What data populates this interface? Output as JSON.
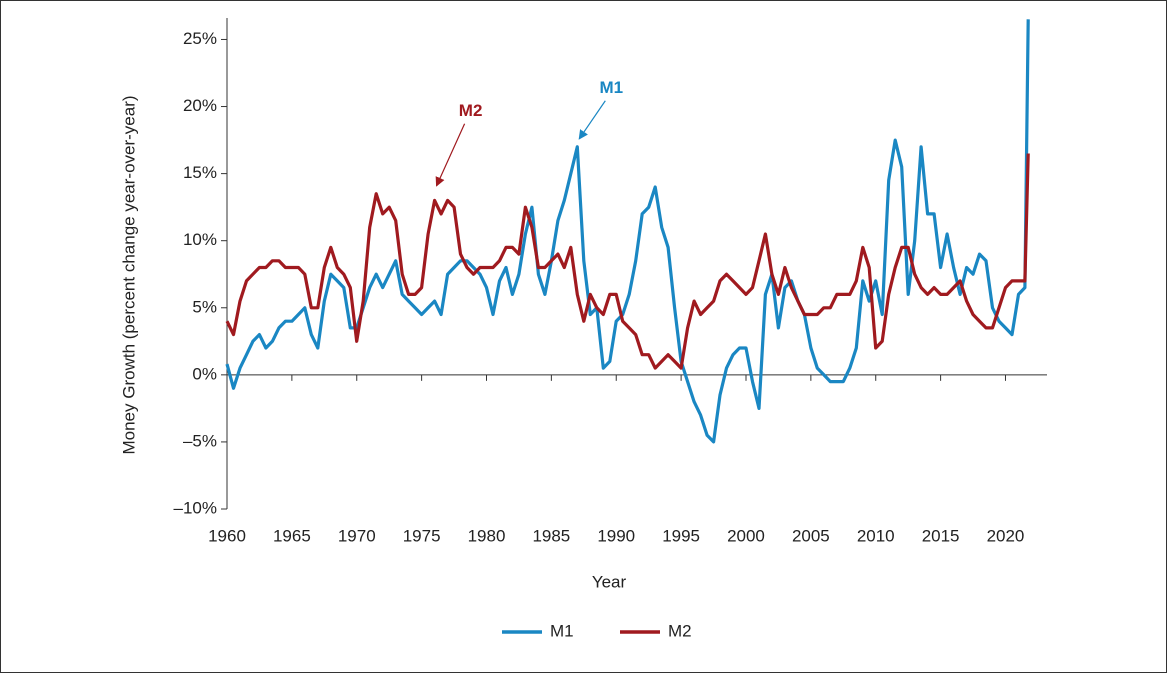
{
  "chart_data": {
    "type": "line",
    "x_label": "Year",
    "y_label": "Money Growth (percent change year-over-year)",
    "xlim": [
      1960,
      2023.2
    ],
    "ylim": [
      -10,
      26.6
    ],
    "xticks": [
      1960,
      1965,
      1970,
      1975,
      1980,
      1985,
      1990,
      1995,
      2000,
      2005,
      2010,
      2015,
      2020
    ],
    "yticks": [
      {
        "value": 25,
        "label": "25%"
      },
      {
        "value": 20,
        "label": "20%"
      },
      {
        "value": 15,
        "label": "15%"
      },
      {
        "value": 10,
        "label": "10%"
      },
      {
        "value": 5,
        "label": "5%"
      },
      {
        "value": 0,
        "label": "0%"
      },
      {
        "value": -5,
        "label": "–5%"
      },
      {
        "value": -10,
        "label": "–10%"
      }
    ],
    "legend": "bottom",
    "x": [
      1960,
      1960.5,
      1961,
      1961.5,
      1962,
      1962.5,
      1963,
      1963.5,
      1964,
      1964.5,
      1965,
      1965.5,
      1966,
      1966.5,
      1967,
      1967.5,
      1968,
      1968.5,
      1969,
      1969.5,
      1970,
      1970.5,
      1971,
      1971.5,
      1972,
      1972.5,
      1973,
      1973.5,
      1974,
      1974.5,
      1975,
      1975.5,
      1976,
      1976.5,
      1977,
      1977.5,
      1978,
      1978.5,
      1979,
      1979.5,
      1980,
      1980.5,
      1981,
      1981.5,
      1982,
      1982.5,
      1983,
      1983.5,
      1984,
      1984.5,
      1985,
      1985.5,
      1986,
      1986.5,
      1987,
      1987.5,
      1988,
      1988.5,
      1989,
      1989.5,
      1990,
      1990.5,
      1991,
      1991.5,
      1992,
      1992.5,
      1993,
      1993.5,
      1994,
      1994.5,
      1995,
      1995.5,
      1996,
      1996.5,
      1997,
      1997.5,
      1998,
      1998.5,
      1999,
      1999.5,
      2000,
      2000.5,
      2001,
      2001.5,
      2002,
      2002.5,
      2003,
      2003.5,
      2004,
      2004.5,
      2005,
      2005.5,
      2006,
      2006.5,
      2007,
      2007.5,
      2008,
      2008.5,
      2009,
      2009.5,
      2010,
      2010.5,
      2011,
      2011.5,
      2012,
      2012.5,
      2013,
      2013.5,
      2014,
      2014.5,
      2015,
      2015.5,
      2016,
      2016.5,
      2017,
      2017.5,
      2018,
      2018.5,
      2019,
      2019.5,
      2020,
      2020.5,
      2021,
      2021.5,
      2021.75
    ],
    "series": [
      {
        "name": "M1",
        "color": "#1a87c3",
        "values": [
          0.8,
          -1.0,
          0.5,
          1.5,
          2.5,
          3.0,
          2.0,
          2.5,
          3.5,
          4.0,
          4.0,
          4.5,
          5.0,
          3.0,
          2.0,
          5.5,
          7.5,
          7.0,
          6.5,
          3.5,
          3.5,
          5.0,
          6.5,
          7.5,
          6.5,
          7.5,
          8.5,
          6.0,
          5.5,
          5.0,
          4.5,
          5.0,
          5.5,
          4.5,
          7.5,
          8.0,
          8.5,
          8.5,
          8.0,
          7.5,
          6.5,
          4.5,
          7.0,
          8.0,
          6.0,
          7.5,
          10.5,
          12.5,
          7.5,
          6.0,
          8.5,
          11.5,
          13.0,
          15.0,
          17.0,
          8.5,
          4.5,
          5.0,
          0.5,
          1.0,
          4.0,
          4.5,
          6.0,
          8.5,
          12.0,
          12.5,
          14.0,
          11.0,
          9.5,
          5.0,
          1.0,
          -0.5,
          -2.0,
          -3.0,
          -4.5,
          -5.0,
          -1.5,
          0.5,
          1.5,
          2.0,
          2.0,
          -0.5,
          -2.5,
          6.0,
          7.5,
          3.5,
          6.5,
          7.0,
          5.5,
          4.5,
          2.0,
          0.5,
          0.0,
          -0.5,
          -0.5,
          -0.5,
          0.5,
          2.0,
          7.0,
          5.5,
          7.0,
          4.5,
          14.5,
          17.5,
          15.5,
          6.0,
          10.0,
          17.0,
          12.0,
          12.0,
          8.0,
          10.5,
          8.0,
          6.0,
          8.0,
          7.5,
          9.0,
          8.5,
          5.0,
          4.0,
          3.5,
          3.0,
          6.0,
          6.5,
          26.5
        ]
      },
      {
        "name": "M2",
        "color": "#a01a1f",
        "values": [
          4.0,
          3.0,
          5.5,
          7.0,
          7.5,
          8.0,
          8.0,
          8.5,
          8.5,
          8.0,
          8.0,
          8.0,
          7.5,
          5.0,
          5.0,
          8.0,
          9.5,
          8.0,
          7.5,
          6.5,
          2.5,
          5.5,
          11.0,
          13.5,
          12.0,
          12.5,
          11.5,
          7.5,
          6.0,
          6.0,
          6.5,
          10.5,
          13.0,
          12.0,
          13.0,
          12.5,
          9.0,
          8.0,
          7.5,
          8.0,
          8.0,
          8.0,
          8.5,
          9.5,
          9.5,
          9.0,
          12.5,
          11.0,
          8.0,
          8.0,
          8.5,
          9.0,
          8.0,
          9.5,
          6.0,
          4.0,
          6.0,
          5.0,
          4.5,
          6.0,
          6.0,
          4.0,
          3.5,
          3.0,
          1.5,
          1.5,
          0.5,
          1.0,
          1.5,
          1.0,
          0.5,
          3.5,
          5.5,
          4.5,
          5.0,
          5.5,
          7.0,
          7.5,
          7.0,
          6.5,
          6.0,
          6.5,
          8.5,
          10.5,
          7.5,
          6.0,
          8.0,
          6.5,
          5.5,
          4.5,
          4.5,
          4.5,
          5.0,
          5.0,
          6.0,
          6.0,
          6.0,
          7.0,
          9.5,
          8.0,
          2.0,
          2.5,
          6.0,
          8.0,
          9.5,
          9.5,
          7.5,
          6.5,
          6.0,
          6.5,
          6.0,
          6.0,
          6.5,
          7.0,
          5.5,
          4.5,
          4.0,
          3.5,
          3.5,
          5.0,
          6.5,
          7.0,
          7.0,
          7.0,
          16.5
        ]
      }
    ],
    "annotations": [
      {
        "text": "M1",
        "x": 1987,
        "y": 17.3,
        "series": 0
      },
      {
        "text": "M2",
        "x": 1976,
        "y": 13.8,
        "series": 1
      }
    ]
  }
}
